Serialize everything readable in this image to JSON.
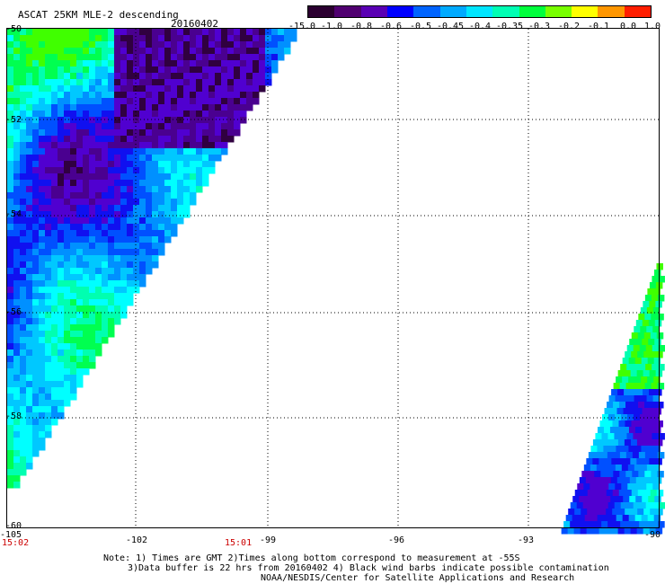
{
  "header": {
    "title": "ASCAT 25KM MLE-2 descending",
    "date": "20160402"
  },
  "colorbar": {
    "labels": [
      "-15.0",
      "-1.0",
      "-0.8",
      "-0.6",
      "-0.5",
      "-0.45",
      "-0.4",
      "-0.35",
      "-0.3",
      "-0.2",
      "-0.1",
      "0.0",
      "1.0"
    ],
    "colors": [
      "#2b0030",
      "#500070",
      "#5a00b4",
      "#0000ff",
      "#0064ff",
      "#00aaff",
      "#00e6ff",
      "#00ffb4",
      "#00ff3c",
      "#78ff00",
      "#ffff00",
      "#ff9600",
      "#ff1e00"
    ]
  },
  "map": {
    "lat_labels": [
      "-50",
      "-52",
      "-54",
      "-56",
      "-58",
      "-60"
    ],
    "lon_labels": [
      "-105",
      "-102",
      "-99",
      "-96",
      "-93",
      "-90"
    ],
    "times": [
      "15:02",
      "15:01"
    ]
  },
  "footer": {
    "line1": "Note: 1) Times are GMT 2)Times along bottom correspond to measurement at -55S",
    "line2": "3)Data buffer is 22 hrs from 20160402 4) Black wind barbs indicate possible contamination",
    "line3": "NOAA/NESDIS/Center for Satellite Applications and Research"
  }
}
